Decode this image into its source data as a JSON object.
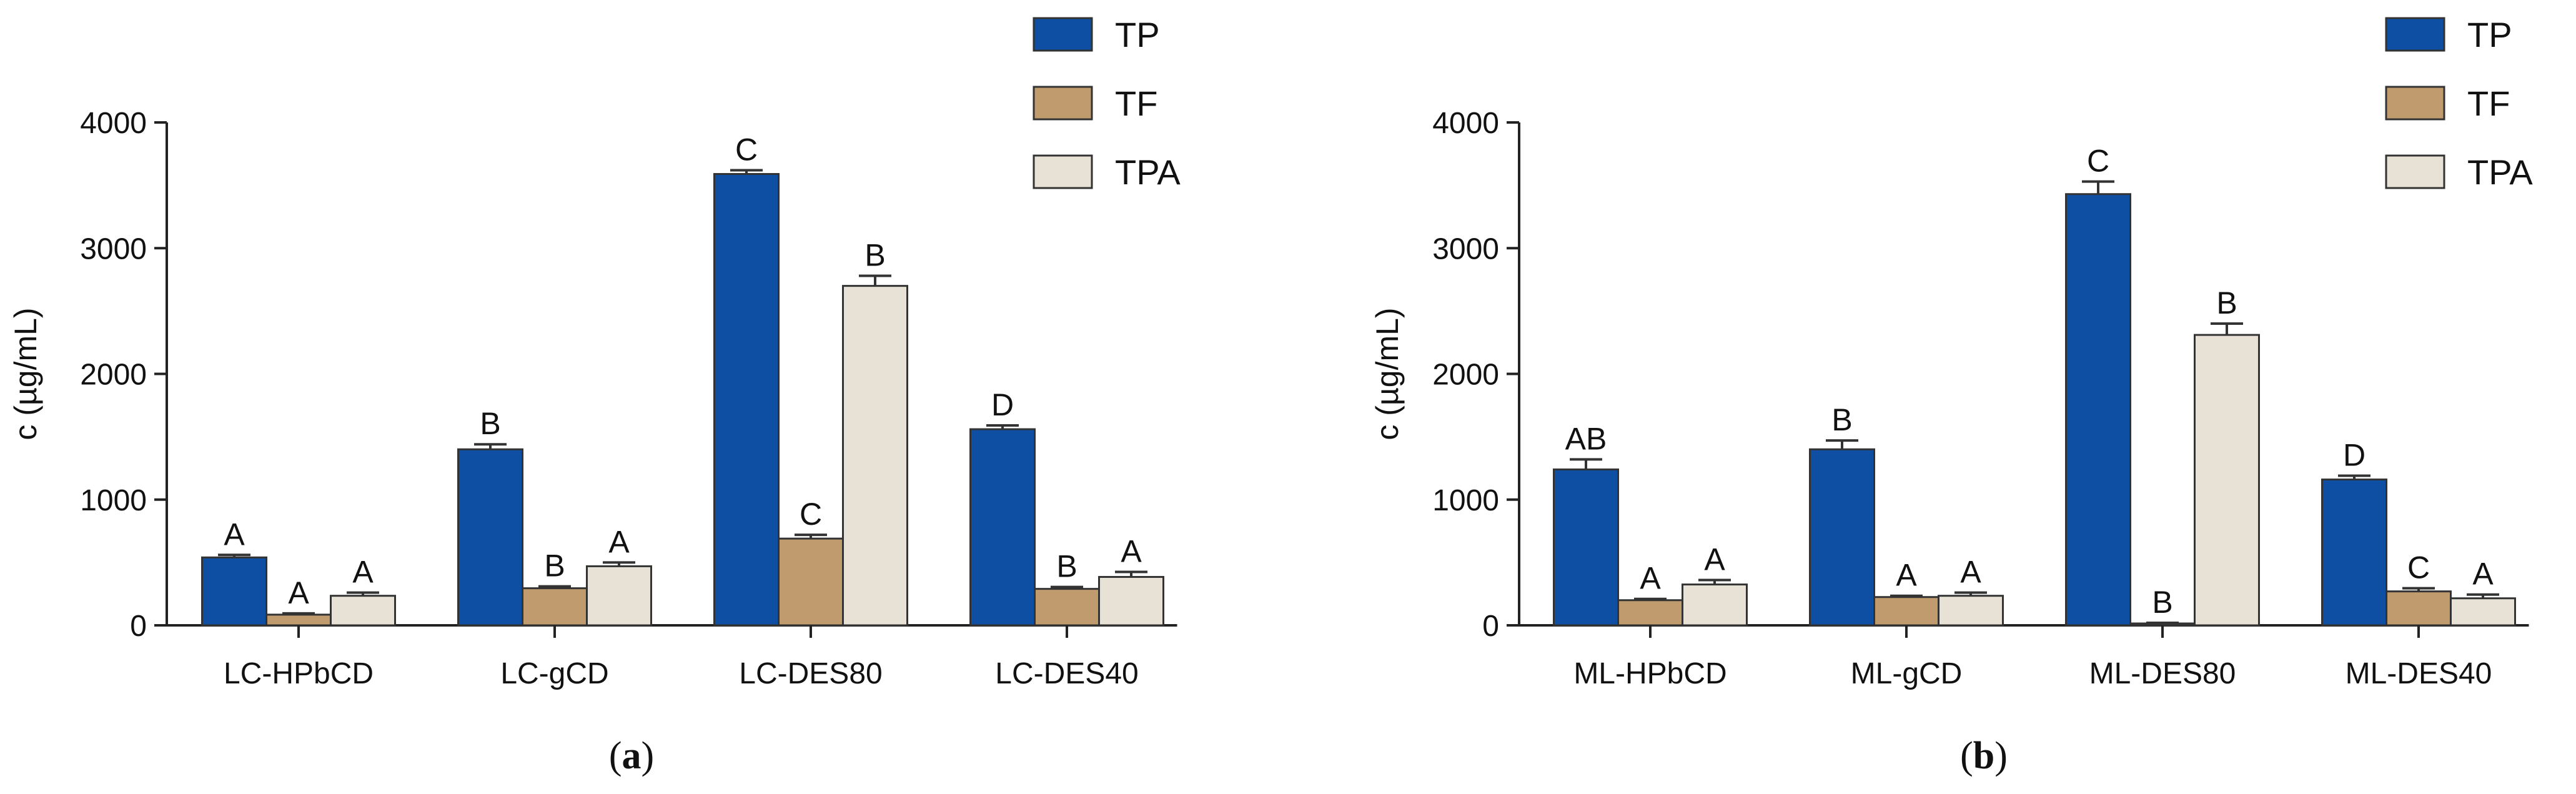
{
  "chart_data": [
    {
      "type": "bar",
      "panel_label": "a",
      "ylabel": "c (µg/mL)",
      "xlabel": "",
      "ylim": [
        0,
        4000
      ],
      "yticks": [
        0,
        1000,
        2000,
        3000,
        4000
      ],
      "categories": [
        "LC-HPbCD",
        "LC-gCD",
        "LC-DES80",
        "LC-DES40"
      ],
      "legend_position": "top-right",
      "series": [
        {
          "name": "TP",
          "color": "#0f4fa3",
          "values": [
            540,
            1400,
            3590,
            1560
          ],
          "errors": [
            20,
            40,
            30,
            30
          ],
          "letters": [
            "A",
            "B",
            "C",
            "D"
          ]
        },
        {
          "name": "TF",
          "color": "#bf9b6e",
          "values": [
            85,
            295,
            690,
            290
          ],
          "errors": [
            10,
            15,
            30,
            15
          ],
          "letters": [
            "A",
            "B",
            "C",
            "B"
          ]
        },
        {
          "name": "TPA",
          "color": "#e7e1d6",
          "values": [
            235,
            470,
            2700,
            385
          ],
          "errors": [
            25,
            30,
            80,
            40
          ],
          "letters": [
            "A",
            "A",
            "B",
            "A"
          ]
        }
      ]
    },
    {
      "type": "bar",
      "panel_label": "b",
      "ylabel": "c (µg/mL)",
      "xlabel": "",
      "ylim": [
        0,
        4000
      ],
      "yticks": [
        0,
        1000,
        2000,
        3000,
        4000
      ],
      "categories": [
        "ML-HPbCD",
        "ML-gCD",
        "ML-DES80",
        "ML-DES40"
      ],
      "legend_position": "top-right",
      "series": [
        {
          "name": "TP",
          "color": "#0f4fa3",
          "values": [
            1240,
            1400,
            3430,
            1160
          ],
          "errors": [
            80,
            70,
            100,
            30
          ],
          "letters": [
            "AB",
            "B",
            "C",
            "D"
          ]
        },
        {
          "name": "TF",
          "color": "#bf9b6e",
          "values": [
            200,
            225,
            15,
            270
          ],
          "errors": [
            10,
            10,
            5,
            25
          ],
          "letters": [
            "A",
            "A",
            "B",
            "C"
          ]
        },
        {
          "name": "TPA",
          "color": "#e7e1d6",
          "values": [
            325,
            235,
            2310,
            215
          ],
          "errors": [
            35,
            25,
            90,
            30
          ],
          "letters": [
            "A",
            "A",
            "B",
            "A"
          ]
        }
      ]
    }
  ]
}
